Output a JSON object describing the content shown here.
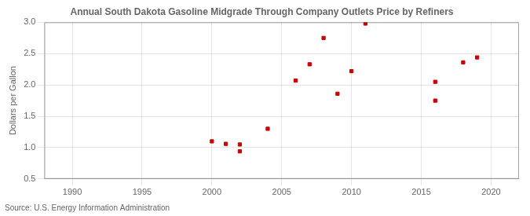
{
  "chart_data": {
    "type": "scatter",
    "title": "Annual South Dakota Gasoline Midgrade Through Company Outlets Price by Refiners",
    "ylabel": "Dollars per Gallon",
    "annotations": [
      "Source: U.S. Energy Information Administration"
    ],
    "x": [
      2000,
      2001,
      2002,
      2002,
      2004,
      2006,
      2007,
      2008,
      2009,
      2010,
      2011,
      2016,
      2016,
      2018,
      2019
    ],
    "values": [
      1.1,
      1.06,
      0.94,
      1.05,
      1.3,
      2.07,
      2.33,
      2.75,
      1.86,
      2.22,
      2.98,
      1.75,
      2.05,
      2.36,
      2.44
    ],
    "color": "#cc0000",
    "marker": "square",
    "xlim": [
      1988,
      2022
    ],
    "ylim": [
      0.5,
      3.0
    ],
    "xticks": [
      1990,
      1995,
      2000,
      2005,
      2010,
      2015,
      2020
    ],
    "yticks": [
      0.5,
      {
        "value": 1.0,
        "label": "1.0"
      },
      1.5,
      {
        "value": 2.0,
        "label": "2.0"
      },
      2.5,
      {
        "value": 3.0,
        "label": "3.0"
      }
    ],
    "grid": true
  }
}
